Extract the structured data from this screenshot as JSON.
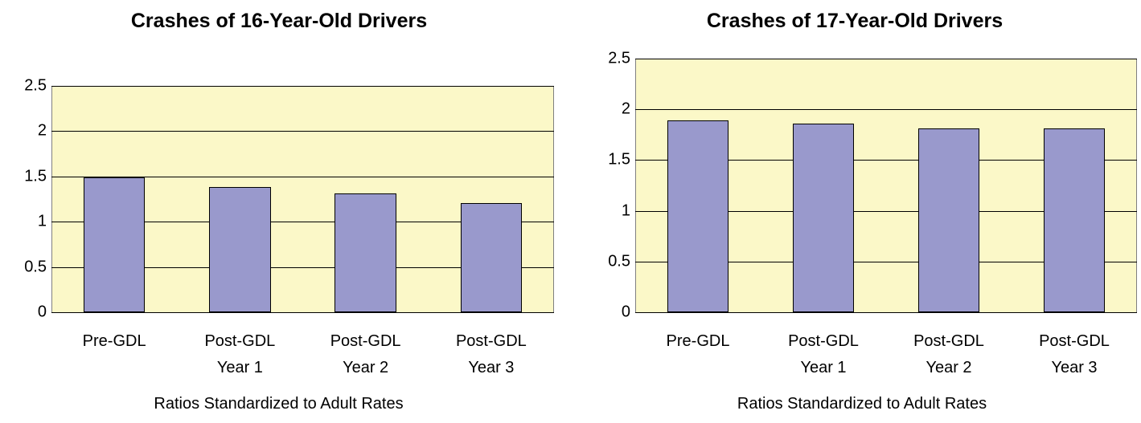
{
  "chart_data": [
    {
      "type": "bar",
      "title": "Crashes of 16-Year-Old Drivers",
      "x_label": "Ratios Standardized to Adult Rates",
      "categories": [
        "Pre-GDL",
        "Post-GDL\nYear 1",
        "Post-GDL\nYear 2",
        "Post-GDL\nYear 3"
      ],
      "values": [
        1.49,
        1.38,
        1.31,
        1.21
      ],
      "color": "#9999cc",
      "background": "#fbf8c8",
      "ylim": [
        0,
        2.5
      ],
      "yticks": [
        0,
        0.5,
        1,
        1.5,
        2,
        2.5
      ],
      "grid": true
    },
    {
      "type": "bar",
      "title": "Crashes of 17-Year-Old Drivers",
      "x_label": "Ratios Standardized to Adult Rates",
      "categories": [
        "Pre-GDL",
        "Post-GDL\nYear 1",
        "Post-GDL\nYear 2",
        "Post-GDL\nYear 3"
      ],
      "values": [
        1.89,
        1.86,
        1.81,
        1.81
      ],
      "color": "#9999cc",
      "background": "#fbf8c8",
      "ylim": [
        0,
        2.5
      ],
      "yticks": [
        0,
        0.5,
        1,
        1.5,
        2,
        2.5
      ],
      "grid": true
    }
  ]
}
